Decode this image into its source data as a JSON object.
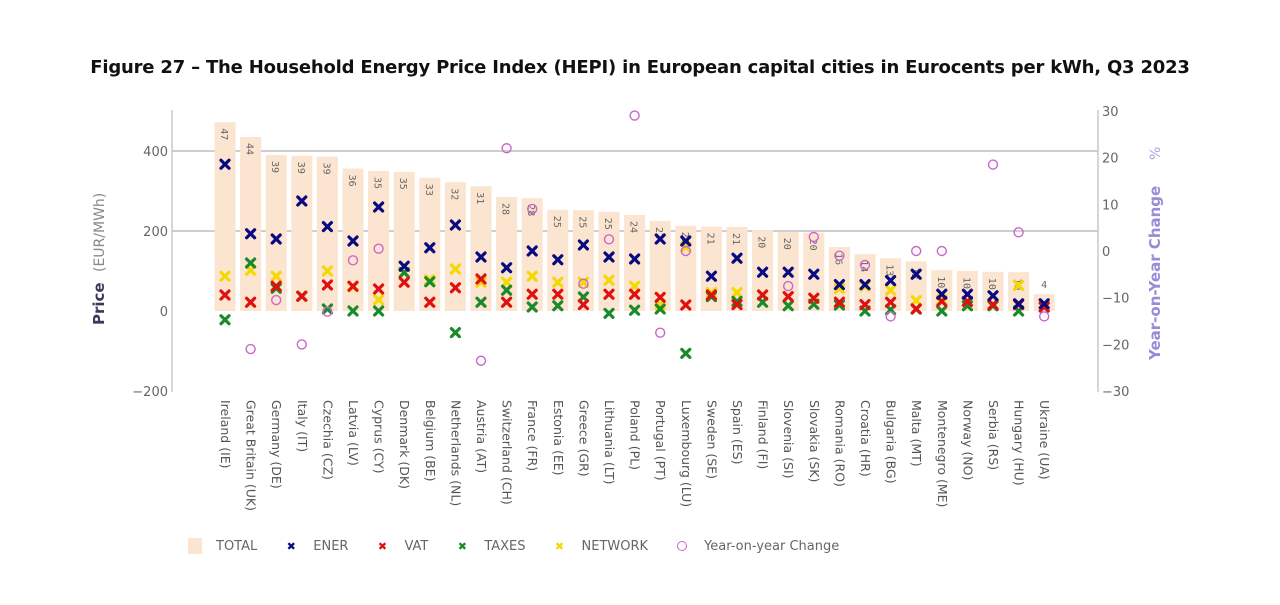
{
  "chart_data": {
    "type": "bar",
    "title": "Figure 27 – The Household Energy Price Index (HEPI) in European capital cities in Eurocents per kWh, Q3 2023",
    "ylabel": "Price",
    "ylabel_unit": "(EUR/MWh)",
    "y2label": "Year-on-Year Change",
    "y2label_unit": "%",
    "ylim": [
      -200,
      500
    ],
    "y_ticks": [
      -200,
      0,
      200,
      400
    ],
    "y2lim": [
      -30,
      30
    ],
    "y2_ticks": [
      -30,
      -20,
      -10,
      0,
      10,
      20,
      30
    ],
    "grid": true,
    "legend_position": "bottom",
    "categories": [
      "Ireland (IE)",
      "Great Britain (UK)",
      "Germany (DE)",
      "Italy (IT)",
      "Czechia (CZ)",
      "Latvia (LV)",
      "Cyprus (CY)",
      "Denmark (DK)",
      "Belgium (BE)",
      "Netherlands (NL)",
      "Austria (AT)",
      "Switzerland (CH)",
      "France (FR)",
      "Estonia (EE)",
      "Greece (GR)",
      "Lithuania (LT)",
      "Poland (PL)",
      "Portugal (PT)",
      "Luxembourg (LU)",
      "Sweden (SE)",
      "Spain (ES)",
      "Finland (FI)",
      "Slovenia (SI)",
      "Slovakia (SK)",
      "Romania (RO)",
      "Croatia (HR)",
      "Bulgaria (BG)",
      "Malta (MT)",
      "Montenegro (ME)",
      "Norway (NO)",
      "Serbia (RS)",
      "Hungary (HU)",
      "Ukraine (UA)"
    ],
    "bar_labels": [
      "47",
      "44",
      "39",
      "39",
      "39",
      "36",
      "35",
      "35",
      "33",
      "32",
      "31",
      "28",
      "28",
      "25",
      "25",
      "25",
      "24",
      "22",
      "21",
      "21",
      "21",
      "20",
      "20",
      "20",
      "16",
      "14",
      "13",
      "12",
      "10",
      "10",
      "10",
      "10",
      "4"
    ],
    "series": [
      {
        "name": "TOTAL",
        "kind": "bar",
        "color": "#fbe5d0",
        "values": [
          472,
          435,
          390,
          388,
          386,
          356,
          350,
          348,
          333,
          322,
          312,
          285,
          282,
          253,
          252,
          248,
          240,
          225,
          213,
          211,
          210,
          202,
          198,
          196,
          160,
          142,
          132,
          124,
          102,
          100,
          98,
          97,
          42
        ]
      },
      {
        "name": "ENER",
        "kind": "marker-x",
        "color": "#0a0a80",
        "values": [
          367,
          193,
          180,
          275,
          211,
          175,
          260,
          112,
          158,
          215,
          135,
          108,
          150,
          128,
          165,
          135,
          130,
          180,
          175,
          87,
          132,
          97,
          97,
          92,
          66,
          66,
          76,
          92,
          42,
          42,
          38,
          18,
          18
        ]
      },
      {
        "name": "VAT",
        "kind": "marker-x",
        "color": "#e01010",
        "values": [
          40,
          22,
          62,
          37,
          65,
          62,
          55,
          72,
          22,
          58,
          80,
          22,
          42,
          42,
          16,
          42,
          42,
          34,
          15,
          40,
          16,
          40,
          36,
          32,
          22,
          16,
          22,
          5,
          24,
          24,
          16,
          16,
          10
        ]
      },
      {
        "name": "TAXES",
        "kind": "marker-x",
        "color": "#1a8a2a",
        "values": [
          -22,
          120,
          57,
          37,
          5,
          0,
          0,
          96,
          73,
          -54,
          22,
          52,
          10,
          13,
          35,
          -6,
          2,
          5,
          -106,
          36,
          24,
          22,
          13,
          17,
          15,
          0,
          3,
          5,
          0,
          13,
          13,
          0,
          10
        ]
      },
      {
        "name": "NETWORK",
        "kind": "marker-x",
        "color": "#f5d800",
        "values": [
          87,
          102,
          87,
          37,
          100,
          60,
          28,
          96,
          78,
          105,
          72,
          72,
          87,
          72,
          72,
          77,
          62,
          16,
          160,
          46,
          46,
          40,
          36,
          32,
          56,
          62,
          52,
          26,
          28,
          13,
          13,
          64,
          10
        ]
      },
      {
        "name": "Year-on-year Change",
        "kind": "marker-circle",
        "axis": "right",
        "color": "#cc66cc",
        "values": [
          null,
          -21,
          -10.5,
          -20,
          -13,
          -2,
          0.5,
          null,
          null,
          null,
          -23.5,
          22,
          9,
          null,
          -7,
          2.5,
          29,
          -17.5,
          0,
          null,
          null,
          null,
          -7.5,
          3,
          -1,
          -3,
          -14,
          0,
          0,
          null,
          18.5,
          4,
          -14
        ]
      }
    ]
  },
  "legend": {
    "items": [
      {
        "label": "TOTAL",
        "symbol": "square",
        "color": "#fbe5d0"
      },
      {
        "label": "ENER",
        "symbol": "x",
        "color": "#0a0a80"
      },
      {
        "label": "VAT",
        "symbol": "x",
        "color": "#e01010"
      },
      {
        "label": "TAXES",
        "symbol": "x",
        "color": "#1a8a2a"
      },
      {
        "label": "NETWORK",
        "symbol": "x",
        "color": "#f5d800"
      },
      {
        "label": "Year-on-year Change",
        "symbol": "circle",
        "color": "#cc66cc"
      }
    ]
  }
}
